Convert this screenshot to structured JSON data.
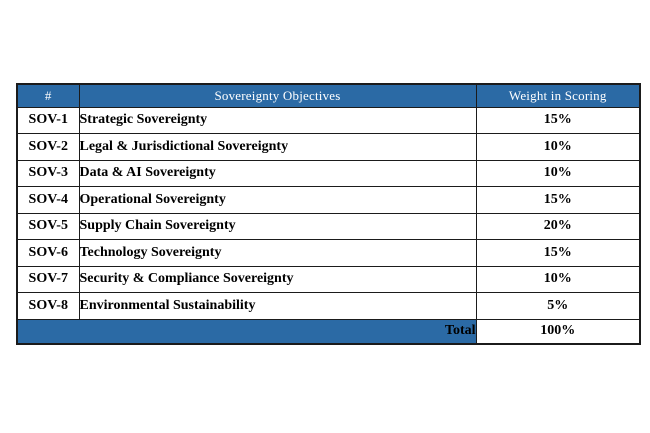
{
  "document": {
    "background_color": "#ffffff",
    "table": {
      "accent_color": "#2b6aa5",
      "border_color": "#1b1b1b",
      "header_text_color": "#ffffff",
      "body_text_color": "#000000",
      "columns": [
        "#",
        "Sovereignty Objectives",
        "Weight in Scoring"
      ],
      "rows": [
        {
          "id": "SOV-1",
          "objective": "Strategic Sovereignty",
          "weight": "15%"
        },
        {
          "id": "SOV-2",
          "objective": "Legal & Jurisdictional Sovereignty",
          "weight": "10%"
        },
        {
          "id": "SOV-3",
          "objective": "Data & AI Sovereignty",
          "weight": "10%"
        },
        {
          "id": "SOV-4",
          "objective": "Operational Sovereignty",
          "weight": "15%"
        },
        {
          "id": "SOV-5",
          "objective": "Supply Chain Sovereignty",
          "weight": "20%"
        },
        {
          "id": "SOV-6",
          "objective": "Technology Sovereignty",
          "weight": "15%"
        },
        {
          "id": "SOV-7",
          "objective": "Security & Compliance Sovereignty",
          "weight": "10%"
        },
        {
          "id": "SOV-8",
          "objective": "Environmental Sustainability",
          "weight": "5%"
        }
      ],
      "footer": {
        "label": "Total",
        "weight": "100%"
      }
    }
  }
}
